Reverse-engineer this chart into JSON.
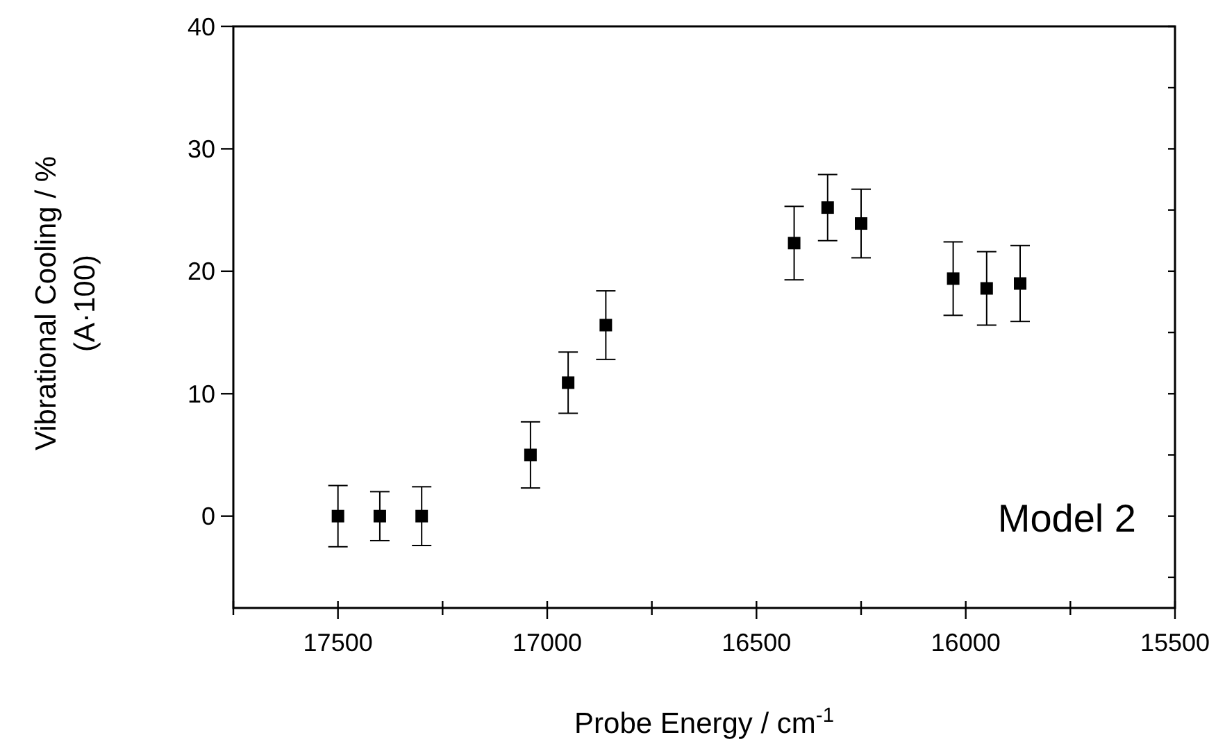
{
  "chart_data": {
    "type": "scatter",
    "xlabel": "Probe Energy  /  cm$^{-1}$",
    "ylabel": "Vibrational Cooling  /  %\n(A·100)",
    "annotations": [
      "Model  2"
    ],
    "x": [
      17500,
      17400,
      17300,
      17040,
      16950,
      16860,
      16410,
      16330,
      16250,
      16030,
      15950,
      15870
    ],
    "series": [
      {
        "color": "#000000",
        "values": [
          0,
          0,
          0,
          5,
          10.9,
          15.6,
          22.3,
          25.2,
          23.9,
          19.4,
          18.6,
          19
        ],
        "errors": [
          2.5,
          2,
          2.4,
          2.7,
          2.5,
          2.8,
          3,
          2.7,
          2.8,
          3,
          3,
          3.1
        ]
      }
    ],
    "xlim": [
      17750,
      15500
    ],
    "xticks": [
      {
        "value": 17750,
        "label": null
      },
      17500,
      {
        "value": 17250,
        "label": null
      },
      17000,
      {
        "value": 16750,
        "label": null
      },
      16500,
      {
        "value": 16250,
        "label": null
      },
      16000,
      {
        "value": 15750,
        "label": null
      },
      15500
    ],
    "ylim": [
      -7.5,
      40
    ],
    "yticks": [
      {
        "value": -5,
        "label": null
      },
      0,
      {
        "value": 5,
        "label": null
      },
      10,
      {
        "value": 15,
        "label": null
      },
      20,
      {
        "value": 25,
        "label": null
      },
      30,
      {
        "value": 35,
        "label": null
      },
      40
    ],
    "marker": "square",
    "grid": false
  }
}
